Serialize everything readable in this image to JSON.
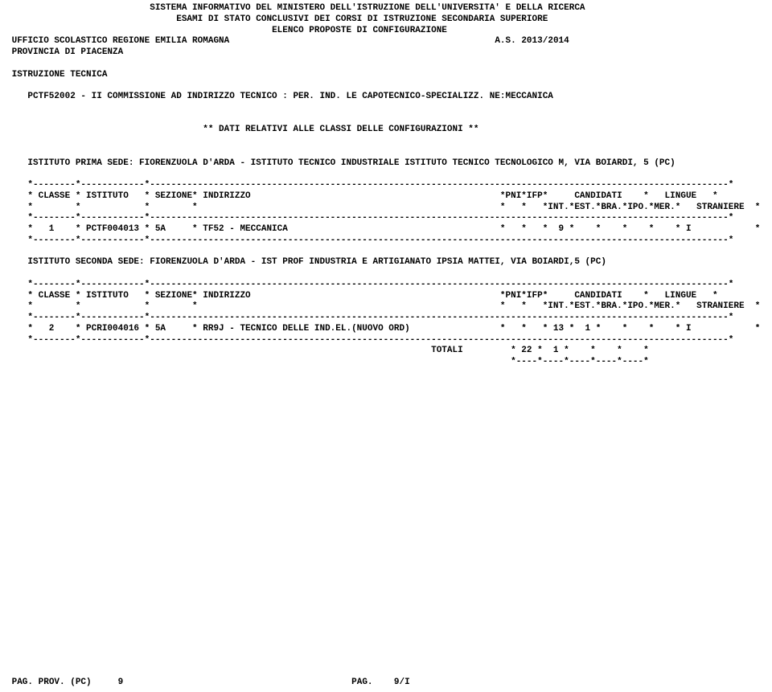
{
  "header": {
    "line1": "SISTEMA INFORMATIVO DEL MINISTERO DELL'ISTRUZIONE DELL'UNIVERSITA' E DELLA RICERCA",
    "line2": "ESAMI DI STATO CONCLUSIVI DEI CORSI DI ISTRUZIONE SECONDARIA SUPERIORE",
    "line3": "ELENCO PROPOSTE DI CONFIGURAZIONE",
    "office": "UFFICIO SCOLASTICO REGIONE EMILIA ROMAGNA",
    "year": "A.S. 2013/2014",
    "province": "PROVINCIA DI PIACENZA",
    "instruction": "ISTRUZIONE TECNICA"
  },
  "commission": "PCTF52002 - II COMMISSIONE AD INDIRIZZO TECNICO : PER. IND. LE CAPOTECNICO-SPECIALIZZ. NE:MECCANICA",
  "subtitle": "** DATI RELATIVI ALLE CLASSI DELLE CONFIGURAZIONI **",
  "section1": {
    "title": "ISTITUTO PRIMA SEDE: FIORENZUOLA D'ARDA - ISTITUTO TECNICO INDUSTRIALE ISTITUTO TECNICO TECNOLOGICO M, VIA BOIARDI, 5 (PC)",
    "hdr1": "* CLASSE * ISTITUTO   * SEZIONE* INDIRIZZO                                               *PNI*IFP*     CANDIDATI    *   LINGUE   *",
    "hdr2": "*        *            *        *                                                         *   *   *INT.*EST.*BRA.*IPO.*MER.*   STRANIERE  *",
    "row": "*   1    * PCTF004013 * 5A     * TF52 - MECCANICA                                        *   *   *  9 *    *    *    *    * I            *"
  },
  "section2": {
    "title": "ISTITUTO SECONDA SEDE: FIORENZUOLA D'ARDA - IST PROF INDUSTRIA E ARTIGIANATO IPSIA MATTEI, VIA BOIARDI,5 (PC)",
    "hdr1": "* CLASSE * ISTITUTO   * SEZIONE* INDIRIZZO                                               *PNI*IFP*     CANDIDATI    *   LINGUE   *",
    "hdr2": "*        *            *        *                                                         *   *   *INT.*EST.*BRA.*IPO.*MER.*   STRANIERE  *",
    "row": "*   2    * PCRI004016 * 5A     * RR9J - TECNICO DELLE IND.EL.(NUOVO ORD)                 *   *   * 13 *  1 *    *    *    * I            *",
    "tot": "                                                                            TOTALI         * 22 *  1 *    *    *    *",
    "tick": "                                                                                           *----*----*----*----*----*"
  },
  "sep": {
    "long": "*--------*------------*-------------------------------------------------------------------------------------------------------------*",
    "long2": "*--------*------------*-------------------------------------------------------------------------------------------------------------*"
  },
  "footer": {
    "left": "PAG. PROV. (PC)",
    "mid": "9",
    "right": "PAG.    9/I"
  }
}
